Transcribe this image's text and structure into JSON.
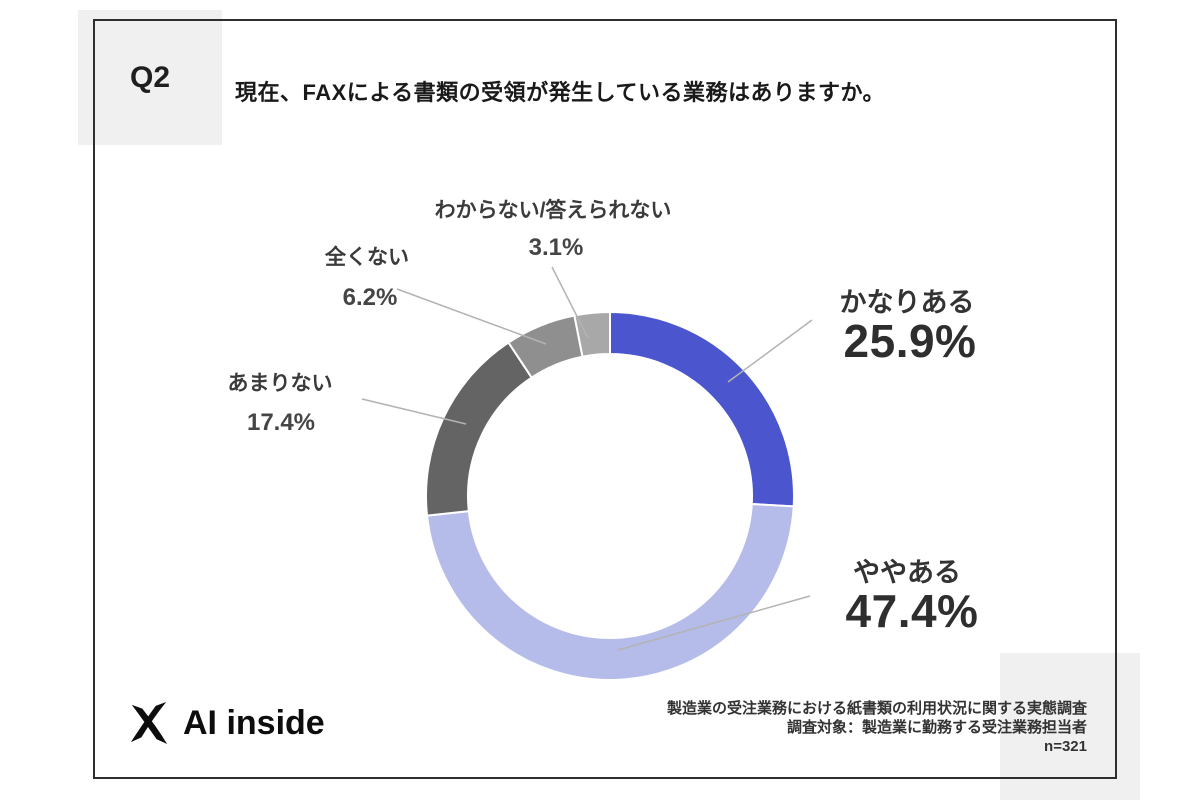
{
  "header": {
    "question_no": "Q2",
    "title": "現在、FAXによる書類の受領が発生している業務はありますか。"
  },
  "chart_data": {
    "type": "pie",
    "subtype": "donut",
    "title": "現在、FAXによる書類の受領が発生している業務はありますか。",
    "unit": "%",
    "start_angle": "12時位置",
    "direction": "clockwise",
    "sample_size": 321,
    "segments": [
      {
        "label": "かなりある",
        "value": 25.9,
        "pct": "25.9%",
        "color": "#4a55ce"
      },
      {
        "label": "ややある",
        "value": 47.4,
        "pct": "47.4%",
        "color": "#b5bce9"
      },
      {
        "label": "あまりない",
        "value": 17.4,
        "pct": "17.4%",
        "color": "#646464"
      },
      {
        "label": "全くない",
        "value": 6.2,
        "pct": "6.2%",
        "color": "#8f8f8f"
      },
      {
        "label": "わからない/答えられない",
        "value": 3.1,
        "pct": "3.1%",
        "color": "#a8a8a8"
      }
    ]
  },
  "footer": {
    "logo_text": "AI inside",
    "source_line1": "製造業の受注業務における紙書類の利用状況に関する実態調査",
    "source_line2": "調査対象：製造業に勤務する受注業務担当者",
    "sample_label": "n=321"
  }
}
